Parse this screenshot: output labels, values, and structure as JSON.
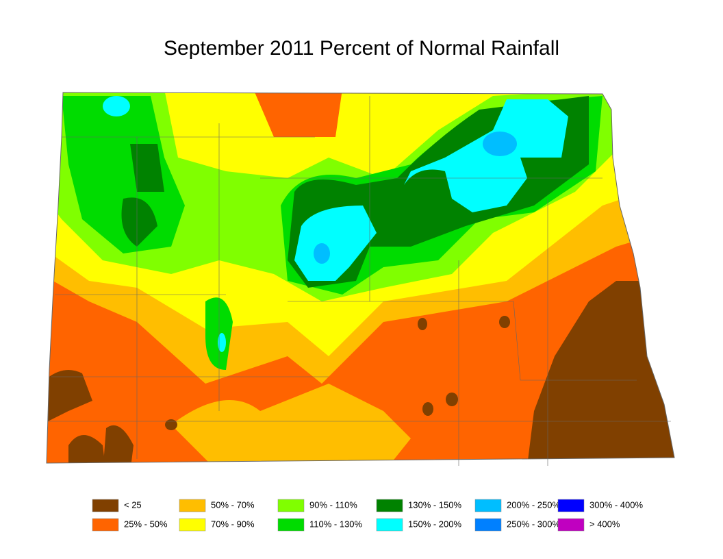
{
  "title": "September 2011 Percent of Normal Rainfall",
  "legend": [
    {
      "label": "< 25",
      "color": "#804000"
    },
    {
      "label": "25% - 50%",
      "color": "#ff6400"
    },
    {
      "label": "50% - 70%",
      "color": "#ffbe00"
    },
    {
      "label": "70% - 90%",
      "color": "#ffff00"
    },
    {
      "label": "90% - 110%",
      "color": "#80ff00"
    },
    {
      "label": "110% - 130%",
      "color": "#00dc00"
    },
    {
      "label": "130% - 150%",
      "color": "#008200"
    },
    {
      "label": "150% - 200%",
      "color": "#00ffff"
    },
    {
      "label": "200% - 250%",
      "color": "#00beff"
    },
    {
      "label": "250% - 300%",
      "color": "#0080ff"
    },
    {
      "label": "300% - 400%",
      "color": "#0000ff"
    },
    {
      "label": "> 400%",
      "color": "#c000c0"
    }
  ]
}
